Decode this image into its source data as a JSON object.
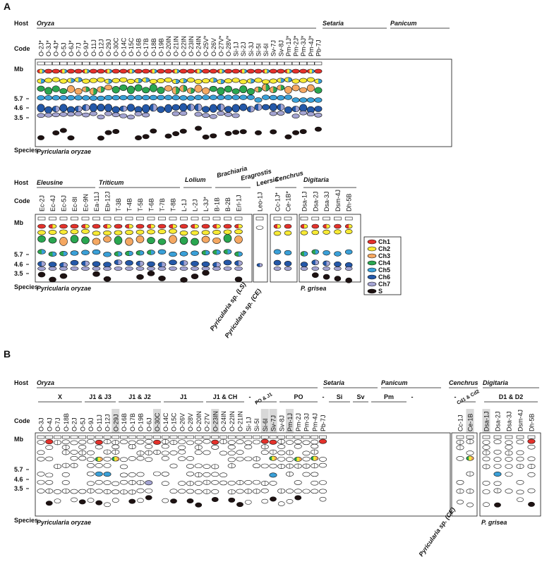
{
  "row_labels": {
    "host": "Host",
    "code": "Code",
    "mb": "Mb",
    "species": "Species"
  },
  "mb_ticks": [
    "5.7",
    "4.6",
    "3.5"
  ],
  "legend": [
    {
      "label": "Ch1",
      "color": "#e4312b"
    },
    {
      "label": "Ch2",
      "color": "#f8ea34"
    },
    {
      "label": "Ch3",
      "color": "#f5a862"
    },
    {
      "label": "Ch4",
      "color": "#2aa650"
    },
    {
      "label": "Ch5",
      "color": "#3aa0d8"
    },
    {
      "label": "Ch6",
      "color": "#2458a8"
    },
    {
      "label": "Ch7",
      "color": "#a4a4d2"
    },
    {
      "label": "S",
      "color": "#1e1212"
    }
  ],
  "panelA": {
    "letter": "A",
    "row1": {
      "hosts": [
        "Oryza",
        "Setaria",
        "Panicum"
      ],
      "codes": [
        "O-2J*",
        "O-3J*",
        "O-4J*",
        "O-5J",
        "O-6J*",
        "O-7J",
        "O-9J*",
        "O-11J",
        "O-12J",
        "O-29J",
        "O-30C",
        "O-14C",
        "O-15C",
        "O-16B",
        "O-17B",
        "O-18B",
        "O-19B",
        "O-20IN",
        "O-21IN",
        "O-22IN",
        "O-23IN",
        "O-24IN",
        "O-25V*",
        "O-26V",
        "O-27V*",
        "O-28V*",
        "Si-1J",
        "Si-2J",
        "Si-3J",
        "Si-5I",
        "Si-6I",
        "Sv-7J",
        "Sv-8J",
        "Pm-1J*",
        "Pm-2J*",
        "Pm-3J*",
        "Pm-4J*",
        "Pb-7J"
      ],
      "species": "Pyricularia oryzae"
    },
    "row2": {
      "hosts": [
        "Eleusine",
        "Triticum",
        "Lolium",
        "Brachiaria",
        "Eragrostis",
        "Leersia",
        "Cenchrus",
        "Digitaria"
      ],
      "codes": [
        "Ec-2J",
        "Ec-4J",
        "Ec-5J",
        "Ec-8I",
        "Ec-9N",
        "Ea-11J",
        "Eb-12J",
        "T-3B",
        "T-4B",
        "T-5B",
        "T-6B",
        "T-7B",
        "T-8B",
        "L-1J",
        "L-2J",
        "L-3J*",
        "B-1B",
        "B-2B",
        "Erl-1J",
        "Leo-1J",
        "Cc-1J*",
        "Ce-1B*",
        "Dsa-1J",
        "Dsa-2J",
        "Dsa-3J",
        "Dsm-4J",
        "Dh-5B"
      ],
      "species": [
        "Pyricularia oryzae",
        "Pyricularia sp. (LS)",
        "Pyricularia sp. (CE)",
        "P. grisea"
      ]
    }
  },
  "panelB": {
    "letter": "B",
    "hosts": [
      "Oryza",
      "Setaria",
      "Panicum",
      "Cenchrus",
      "Digitaria"
    ],
    "groups": [
      "X",
      "J1 & J3",
      "J1 & J2",
      "J1",
      "J1 & CH",
      "-",
      "PO & J1",
      "PO",
      "-",
      "Si",
      "Sv",
      "Pm",
      "-",
      "-",
      "Cd1 & Cd2",
      "D1 & D2"
    ],
    "codes": [
      "O-3J",
      "O-4J",
      "O-7J",
      "O-18B",
      "O-2J",
      "O-5J",
      "O-9J",
      "O-11J",
      "O-12J",
      "O-29J",
      "O-16B",
      "O-17B",
      "O-19B",
      "O-6J",
      "O-30C",
      "O-14C",
      "O-15C",
      "O-26V",
      "O-28V",
      "O-20IN",
      "O-27V",
      "O-23IN",
      "O-24IN",
      "O-22IN",
      "O-21IN",
      "Si-1J",
      "Si-5I",
      "Si-6I",
      "Sv-7J",
      "Sv-8J",
      "Pm-1J",
      "Pm-2J",
      "Pm-3J",
      "Pm-4J",
      "Pb-7J",
      "Cc-1J",
      "Ce-1B",
      "Dsa-1J",
      "Dsa-2J",
      "Dsa-3J",
      "Dsm-4J",
      "Dh-5B"
    ],
    "highlighted": [
      "O-29J",
      "O-30C",
      "O-23IN",
      "Si-6I",
      "Sv-7J",
      "Pm-1J",
      "Ce-1B",
      "Dsa-1J"
    ],
    "species": [
      "Pyricularia oryzae",
      "Pyricularia sp. (CE)",
      "P. grisea"
    ]
  }
}
